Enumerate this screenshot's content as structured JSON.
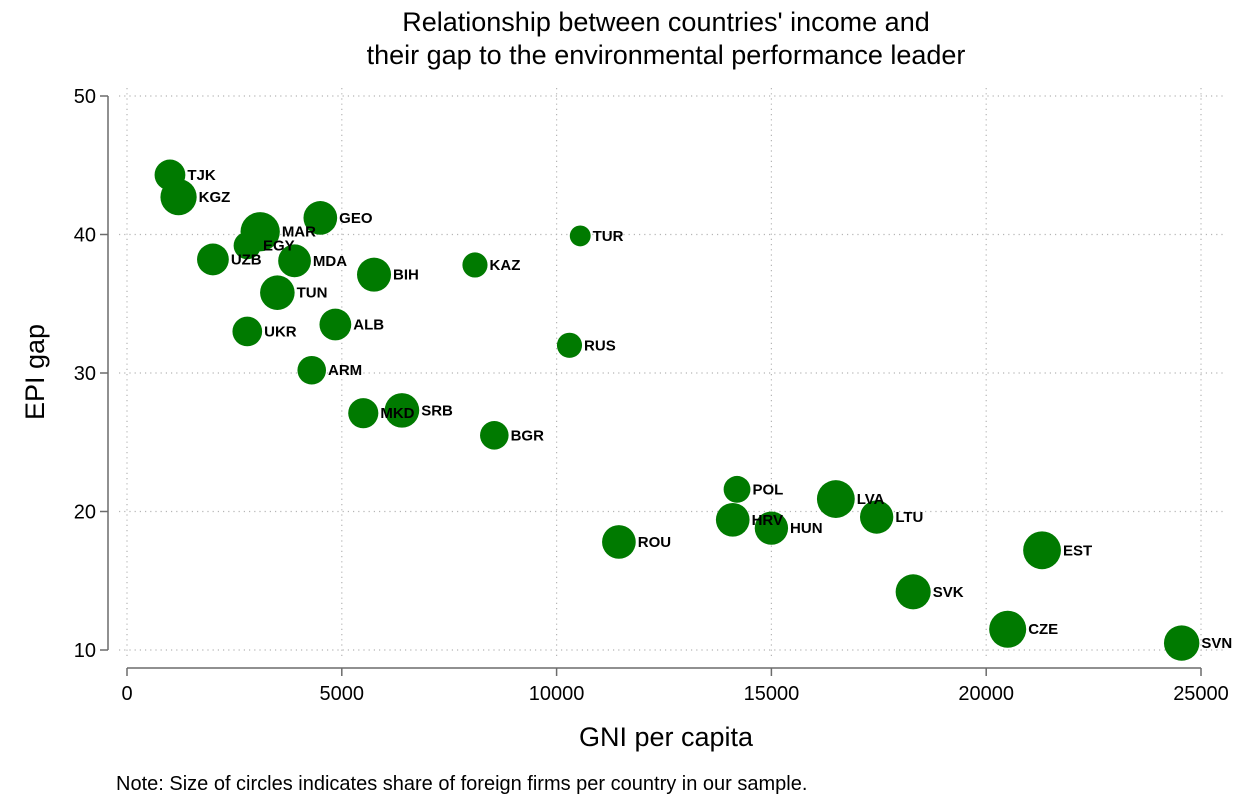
{
  "chart_data": {
    "type": "scatter",
    "title": [
      "Relationship between countries' income and",
      "their gap to the environmental performance leader"
    ],
    "xlabel": "GNI per capita",
    "ylabel": "EPI gap",
    "xlim": [
      0,
      25000
    ],
    "ylim": [
      10,
      50
    ],
    "xticks": [
      0,
      5000,
      10000,
      15000,
      20000,
      25000
    ],
    "yticks": [
      10,
      20,
      30,
      40,
      50
    ],
    "grid": true,
    "marker_color": "#007a00",
    "note": "Note: Size of circles indicates share of foreign firms per country in our sample.",
    "points": [
      {
        "label": "TJK",
        "x": 1000,
        "y": 44.3,
        "size": 0.45
      },
      {
        "label": "KGZ",
        "x": 1200,
        "y": 42.7,
        "size": 0.75
      },
      {
        "label": "MAR",
        "x": 3100,
        "y": 40.2,
        "size": 0.95
      },
      {
        "label": "EGY",
        "x": 2800,
        "y": 39.2,
        "size": 0.3
      },
      {
        "label": "UZB",
        "x": 2000,
        "y": 38.2,
        "size": 0.5
      },
      {
        "label": "MDA",
        "x": 3900,
        "y": 38.1,
        "size": 0.55
      },
      {
        "label": "GEO",
        "x": 4500,
        "y": 41.2,
        "size": 0.6
      },
      {
        "label": "BIH",
        "x": 5750,
        "y": 37.1,
        "size": 0.62
      },
      {
        "label": "TUN",
        "x": 3500,
        "y": 35.8,
        "size": 0.65
      },
      {
        "label": "KAZ",
        "x": 8100,
        "y": 37.8,
        "size": 0.22
      },
      {
        "label": "TUR",
        "x": 10550,
        "y": 39.9,
        "size": 0.1
      },
      {
        "label": "ALB",
        "x": 4850,
        "y": 33.5,
        "size": 0.5
      },
      {
        "label": "UKR",
        "x": 2800,
        "y": 33.0,
        "size": 0.4
      },
      {
        "label": "RUS",
        "x": 10300,
        "y": 32.0,
        "size": 0.22
      },
      {
        "label": "ARM",
        "x": 4300,
        "y": 30.2,
        "size": 0.35
      },
      {
        "label": "MKD",
        "x": 5500,
        "y": 27.1,
        "size": 0.42
      },
      {
        "label": "SRB",
        "x": 6400,
        "y": 27.3,
        "size": 0.65
      },
      {
        "label": "BGR",
        "x": 8550,
        "y": 25.5,
        "size": 0.35
      },
      {
        "label": "POL",
        "x": 14200,
        "y": 21.6,
        "size": 0.28
      },
      {
        "label": "LVA",
        "x": 16500,
        "y": 20.9,
        "size": 0.85
      },
      {
        "label": "HRV",
        "x": 14100,
        "y": 19.4,
        "size": 0.6
      },
      {
        "label": "HUN",
        "x": 15000,
        "y": 18.8,
        "size": 0.58
      },
      {
        "label": "LTU",
        "x": 17450,
        "y": 19.6,
        "size": 0.58
      },
      {
        "label": "ROU",
        "x": 11450,
        "y": 17.8,
        "size": 0.6
      },
      {
        "label": "EST",
        "x": 21300,
        "y": 17.2,
        "size": 0.85
      },
      {
        "label": "SVK",
        "x": 18300,
        "y": 14.2,
        "size": 0.68
      },
      {
        "label": "CZE",
        "x": 20500,
        "y": 11.5,
        "size": 0.8
      },
      {
        "label": "SVN",
        "x": 24550,
        "y": 10.5,
        "size": 0.7
      }
    ]
  }
}
